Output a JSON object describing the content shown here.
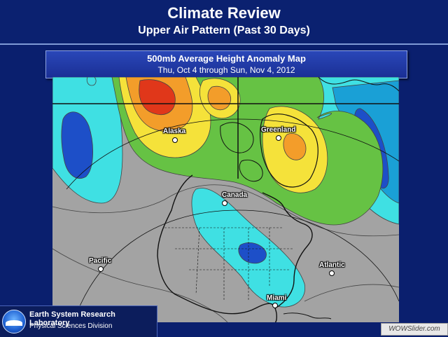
{
  "slide": {
    "title": "Climate Review",
    "subtitle": "Upper Air Pattern (Past 30 Days)"
  },
  "map": {
    "title": "500mb Average Height Anomaly Map",
    "date_range": "Thu, Oct 4 through Sun, Nov 4, 2012",
    "places": {
      "alaska": "Alaska",
      "greenland": "Greenland",
      "canada": "Canada",
      "pacific": "Pacific",
      "atlantic": "Atlantic",
      "miami": "Miami"
    },
    "colors": {
      "neutral": "#a3a3a3",
      "light_negative": "#3fe0e3",
      "moderate_negative": "#1aa0d6",
      "strong_negative": "#1d4fc8",
      "light_positive": "#66c244",
      "moderate_positive": "#f5e23a",
      "warm_positive": "#f39d2a",
      "strong_positive": "#e0371a"
    }
  },
  "footer": {
    "lab_name": "Earth System Research Laboratory",
    "lab_division": "Physical Sciences Division",
    "watermark": "WOWSlider.com"
  }
}
